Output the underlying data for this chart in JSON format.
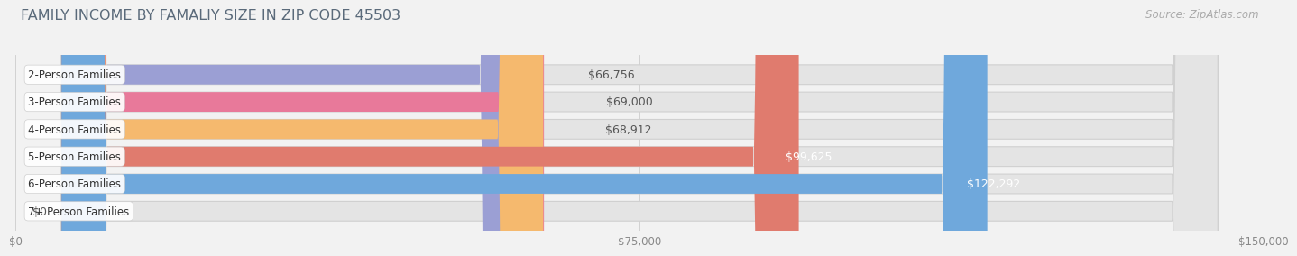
{
  "title": "FAMILY INCOME BY FAMALIY SIZE IN ZIP CODE 45503",
  "source": "Source: ZipAtlas.com",
  "categories": [
    "2-Person Families",
    "3-Person Families",
    "4-Person Families",
    "5-Person Families",
    "6-Person Families",
    "7+ Person Families"
  ],
  "values": [
    66756,
    69000,
    68912,
    99625,
    122292,
    0
  ],
  "bar_colors": [
    "#9b9fd4",
    "#e8799a",
    "#f5b96e",
    "#e07b6e",
    "#6fa8dc",
    "#c9b8d8"
  ],
  "bar_labels": [
    "$66,756",
    "$69,000",
    "$68,912",
    "$99,625",
    "$122,292",
    "$0"
  ],
  "label_inside": [
    false,
    false,
    false,
    true,
    true,
    false
  ],
  "xlim": [
    0,
    150000
  ],
  "xticks": [
    0,
    75000,
    150000
  ],
  "xticklabels": [
    "$0",
    "$75,000",
    "$150,000"
  ],
  "background_color": "#f2f2f2",
  "bar_bg_color": "#e4e4e4",
  "title_fontsize": 11.5,
  "bar_height": 0.72,
  "label_fontsize": 9,
  "ylabel_fontsize": 8.5,
  "source_fontsize": 8.5,
  "title_color": "#5a6a7a",
  "value_label_outside_color": "#555555",
  "value_label_inside_color": "#ffffff"
}
